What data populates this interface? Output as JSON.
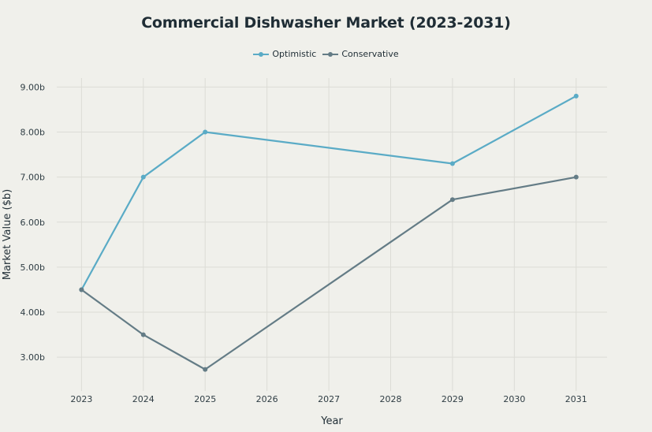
{
  "chart_data": {
    "type": "line",
    "title": "Commercial Dishwasher Market (2023-2031)",
    "xlabel": "Year",
    "ylabel": "Market Value ($b)",
    "x_ticks": [
      "2023",
      "2024",
      "2025",
      "2026",
      "2027",
      "2028",
      "2029",
      "2030",
      "2031"
    ],
    "y_ticks": [
      "3.00b",
      "4.00b",
      "5.00b",
      "6.00b",
      "7.00b",
      "8.00b",
      "9.00b"
    ],
    "xlim": [
      2022.6,
      2031.5
    ],
    "ylim": [
      2.25,
      9.2
    ],
    "grid": true,
    "legend_position": "top-center",
    "series": [
      {
        "name": "Optimistic",
        "color": "#5aabc6",
        "x": [
          2023,
          2024,
          2025,
          2029,
          2031
        ],
        "y": [
          4.5,
          7.0,
          8.0,
          7.3,
          8.8
        ]
      },
      {
        "name": "Conservative",
        "color": "#647c86",
        "x": [
          2023,
          2024,
          2025,
          2029,
          2031
        ],
        "y": [
          4.5,
          3.5,
          2.73,
          6.5,
          7.0
        ]
      }
    ]
  }
}
